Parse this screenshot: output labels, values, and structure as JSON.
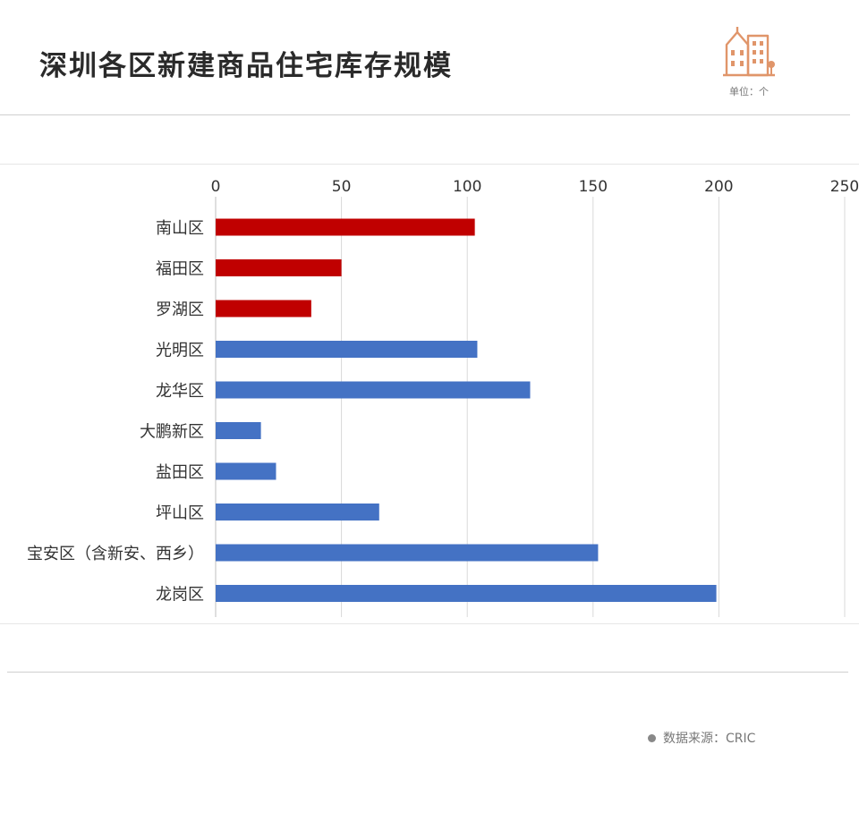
{
  "header": {
    "title": "深圳各区新建商品住宅库存规模",
    "unit": "单位：个",
    "logo_icon": "building-icon"
  },
  "footer": {
    "source": "数据来源：CRIC"
  },
  "colors": {
    "highlight": "#c00000",
    "normal": "#4472c4",
    "grid": "#d9d9d9",
    "logo": "#e0956a"
  },
  "chart_data": {
    "type": "bar",
    "orientation": "horizontal",
    "categories": [
      "南山区",
      "福田区",
      "罗湖区",
      "光明区",
      "龙华区",
      "大鹏新区",
      "盐田区",
      "坪山区",
      "宝安区（含新安、西乡）",
      "龙岗区"
    ],
    "values": [
      103,
      50,
      38,
      104,
      125,
      18,
      24,
      65,
      152,
      199
    ],
    "bar_colors": [
      "#c00000",
      "#c00000",
      "#c00000",
      "#4472c4",
      "#4472c4",
      "#4472c4",
      "#4472c4",
      "#4472c4",
      "#4472c4",
      "#4472c4"
    ],
    "xlim": [
      0,
      250
    ],
    "xticks": [
      "0",
      "50",
      "100",
      "150",
      "200",
      "250"
    ],
    "x_axis_position": "top",
    "grid": true,
    "title": "",
    "xlabel": "",
    "ylabel": ""
  }
}
